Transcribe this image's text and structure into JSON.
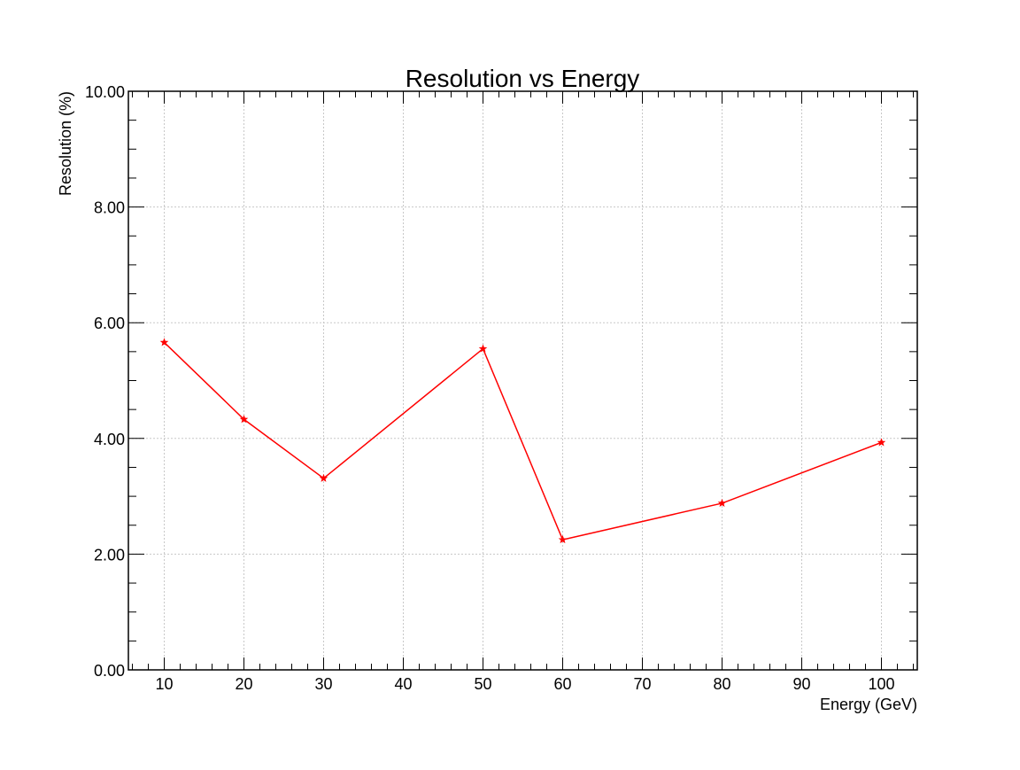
{
  "chart_data": {
    "type": "line",
    "title": "Resolution vs Energy",
    "xlabel": "Energy (GeV)",
    "ylabel": "Resolution (%)",
    "xlim": [
      5.5,
      104.5
    ],
    "ylim": [
      0,
      10
    ],
    "x_ticks": [
      "10",
      "20",
      "30",
      "40",
      "50",
      "60",
      "70",
      "80",
      "90",
      "100"
    ],
    "y_ticks": [
      "0.00",
      "2.00",
      "4.00",
      "6.00",
      "8.00",
      "10.00"
    ],
    "grid": true,
    "series": [
      {
        "x": [
          10,
          20,
          30,
          50,
          60,
          80,
          100
        ],
        "y": [
          5.66,
          4.33,
          3.31,
          5.55,
          2.25,
          2.88,
          3.93
        ],
        "color": "#ff0000",
        "marker": "star"
      }
    ]
  }
}
